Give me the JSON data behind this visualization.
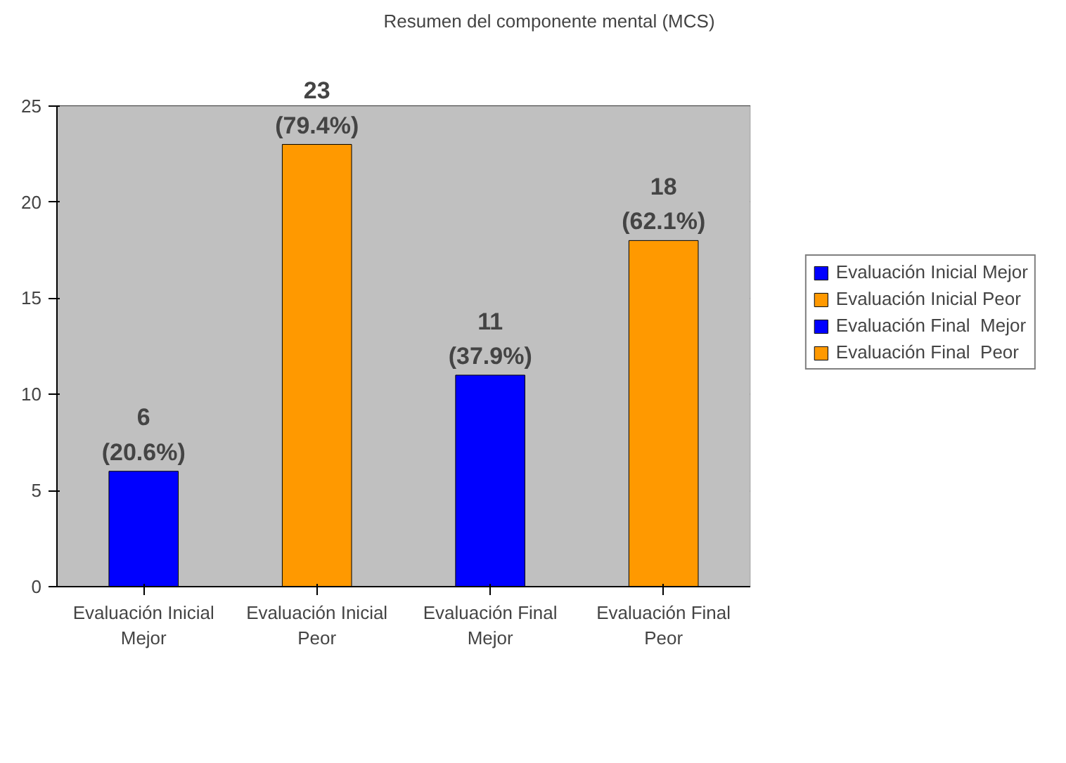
{
  "chart_data": {
    "type": "bar",
    "title": "Resumen del componente mental (MCS)",
    "categories": [
      "Evaluación Inicial Mejor",
      "Evaluación Inicial Peor",
      "Evaluación Final  Mejor",
      "Evaluación Final  Peor"
    ],
    "series": [
      {
        "name": "Evaluación Inicial Mejor",
        "color": "#0000ff",
        "values": [
          6,
          null,
          null,
          null
        ],
        "value_labels": [
          "6\n(20.6%)",
          null,
          null,
          null
        ]
      },
      {
        "name": "Evaluación Inicial Peor",
        "color": "#ff9900",
        "values": [
          null,
          23,
          null,
          null
        ],
        "value_labels": [
          null,
          "23\n(79.4%)",
          null,
          null
        ]
      },
      {
        "name": "Evaluación Final  Mejor",
        "color": "#0000ff",
        "values": [
          null,
          null,
          11,
          null
        ],
        "value_labels": [
          null,
          null,
          "11\n(37.9%)",
          null
        ]
      },
      {
        "name": "Evaluación Final  Peor",
        "color": "#ff9900",
        "values": [
          null,
          null,
          null,
          18
        ],
        "value_labels": [
          null,
          null,
          null,
          "18\n(62.1%)"
        ]
      }
    ],
    "ylim": [
      0,
      25
    ],
    "yticks": [
      0,
      5,
      10,
      15,
      20,
      25
    ],
    "grid": "y",
    "legend": "right"
  }
}
